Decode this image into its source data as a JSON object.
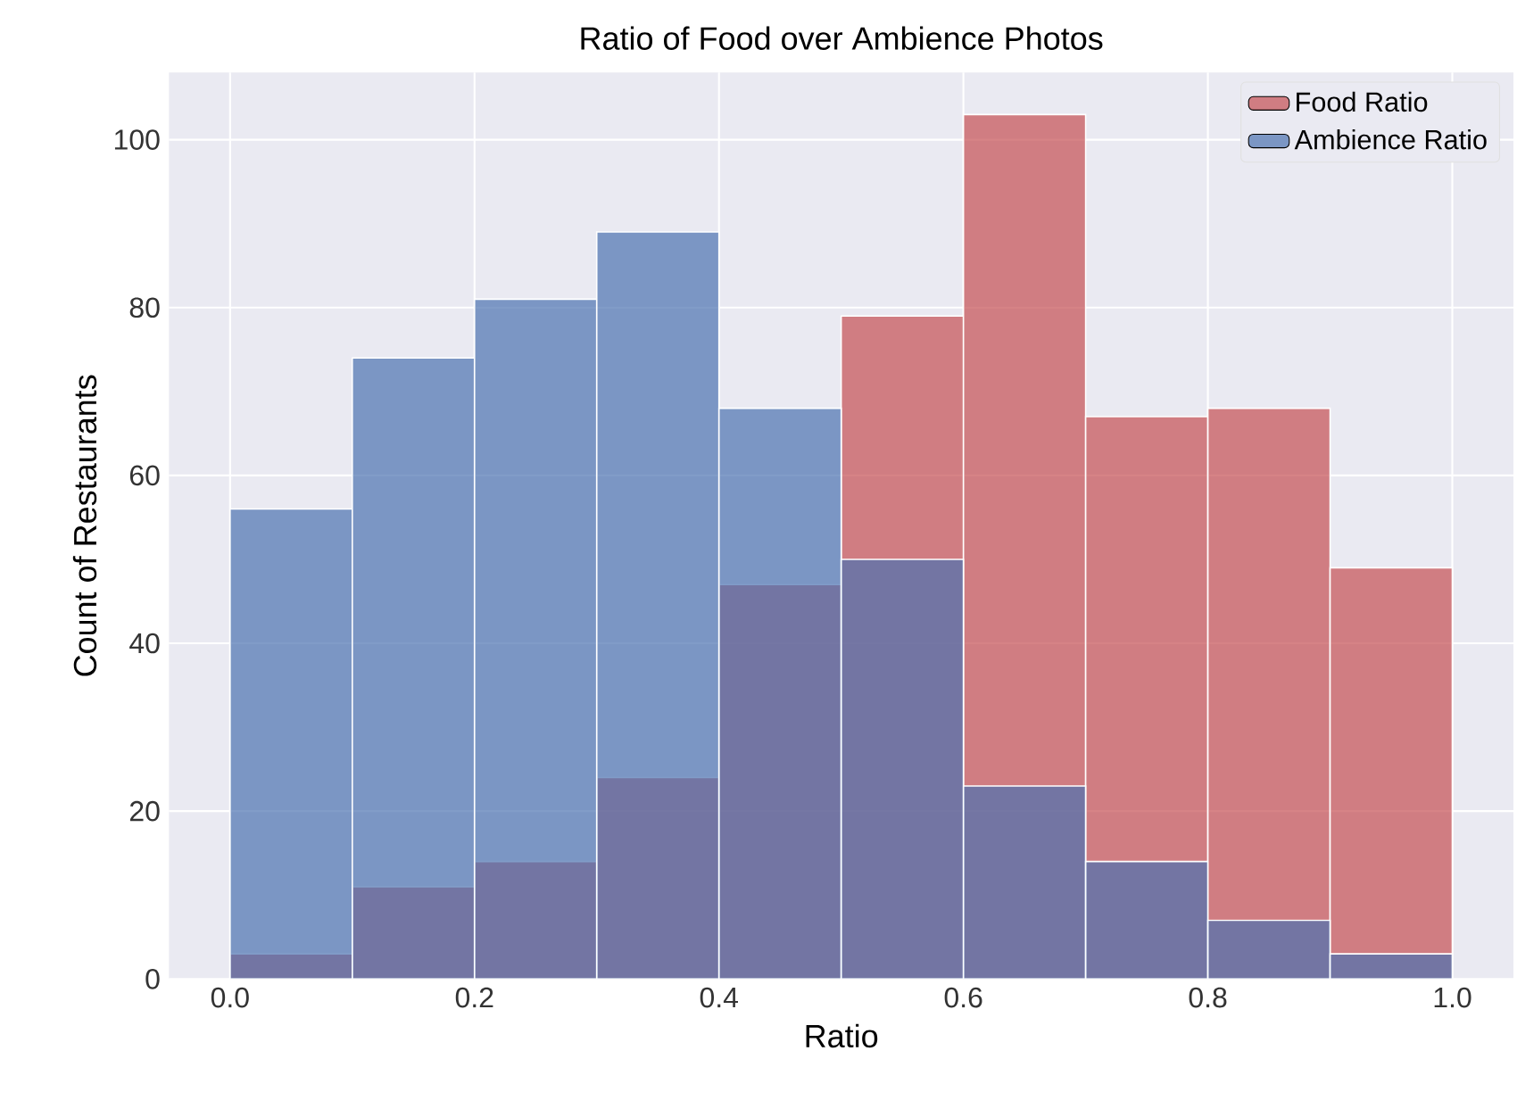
{
  "chart_data": {
    "type": "histogram",
    "title": "Ratio of Food over Ambience Photos",
    "xlabel": "Ratio",
    "ylabel": "Count of Restaurants",
    "bins": [
      0,
      0.1,
      0.2,
      0.3,
      0.4,
      0.5,
      0.6,
      0.7,
      0.8,
      0.9,
      1.0
    ],
    "series": [
      {
        "name": "Food Ratio",
        "color": "#c44e52",
        "values": [
          3,
          11,
          14,
          24,
          47,
          79,
          103,
          67,
          68,
          49
        ]
      },
      {
        "name": "Ambience Ratio",
        "color": "#4c72b0",
        "values": [
          56,
          74,
          81,
          89,
          68,
          50,
          23,
          14,
          7,
          3
        ]
      }
    ],
    "xlim": [
      -0.05,
      1.05
    ],
    "ylim": [
      0,
      108
    ],
    "xticks": [
      {
        "value": 0,
        "label": "0.0"
      },
      {
        "value": 0.2,
        "label": "0.2"
      },
      {
        "value": 0.4,
        "label": "0.4"
      },
      {
        "value": 0.6,
        "label": "0.6"
      },
      {
        "value": 0.8,
        "label": "0.8"
      },
      {
        "value": 1.0,
        "label": "1.0"
      }
    ],
    "yticks": [
      0,
      20,
      40,
      60,
      80,
      100
    ],
    "grid": true,
    "legend": "top right"
  }
}
